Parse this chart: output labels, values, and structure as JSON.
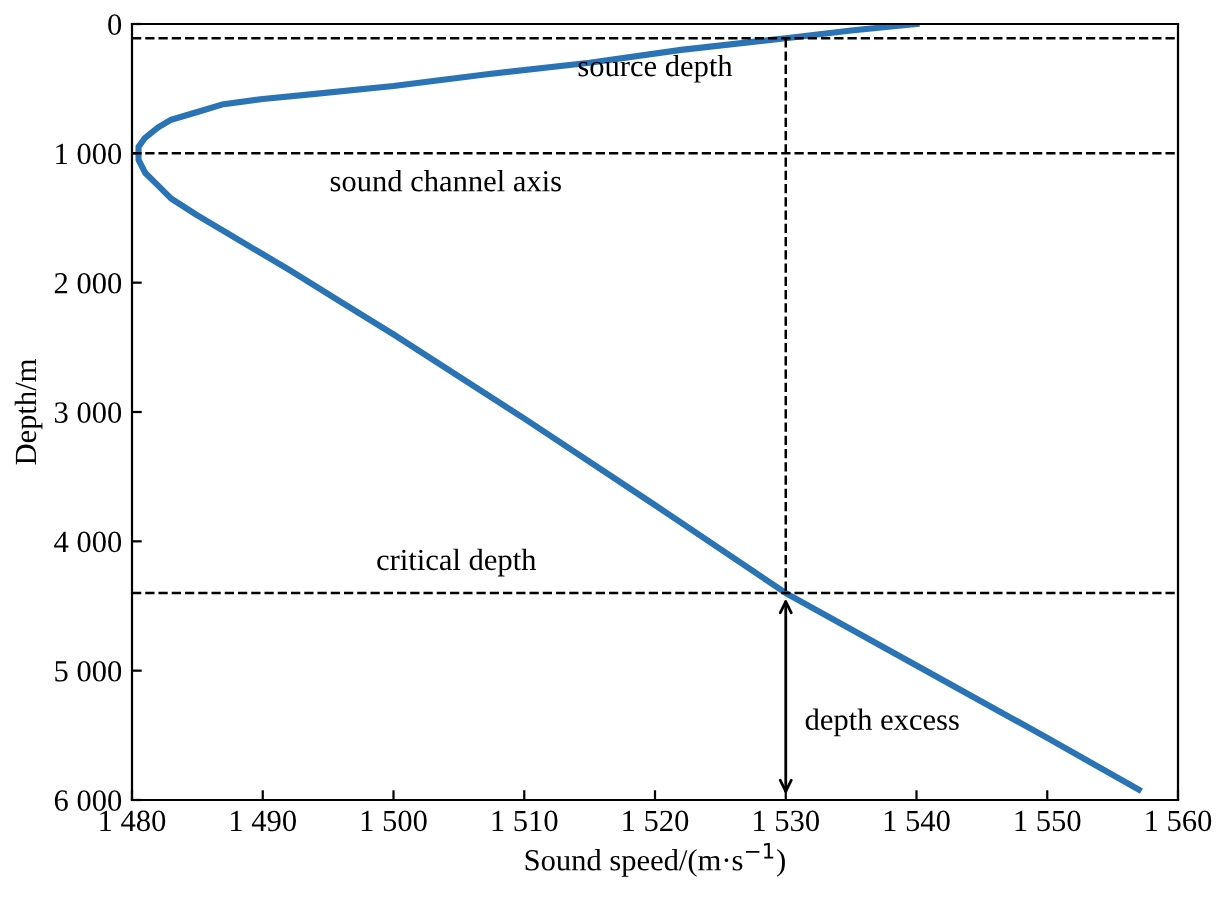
{
  "chart_data": {
    "type": "line",
    "xlabel": "Sound speed/(m·s$^{−1}$)",
    "ylabel": "Depth/m",
    "x": [
      1540,
      1535,
      1530,
      1522,
      1515,
      1507,
      1500,
      1494,
      1490,
      1487,
      1485,
      1483,
      1482,
      1481,
      1480.5,
      1480.5,
      1481,
      1482,
      1483,
      1485,
      1487,
      1490,
      1492,
      1496,
      1500,
      1510,
      1520,
      1530,
      1540,
      1550,
      1557
    ],
    "series": [
      {
        "color": "#2a73b5",
        "values": [
          0,
          50,
          110,
          200,
          300,
          390,
          480,
          540,
          580,
          620,
          680,
          740,
          800,
          880,
          950,
          1050,
          1150,
          1250,
          1350,
          1480,
          1600,
          1780,
          1900,
          2150,
          2400,
          3050,
          3720,
          4400,
          4960,
          5520,
          5920
        ]
      }
    ],
    "xlim": [
      1480,
      1560
    ],
    "ylim": [
      6000,
      0
    ],
    "xticks": [
      {
        "value": 1480,
        "label": "1 480"
      },
      {
        "value": 1490,
        "label": "1 490"
      },
      {
        "value": 1500,
        "label": "1 500"
      },
      {
        "value": 1510,
        "label": "1 510"
      },
      {
        "value": 1520,
        "label": "1 520"
      },
      {
        "value": 1530,
        "label": "1 530"
      },
      {
        "value": 1540,
        "label": "1 540"
      },
      {
        "value": 1550,
        "label": "1 550"
      },
      {
        "value": 1560,
        "label": "1 560"
      }
    ],
    "yticks": [
      0,
      {
        "value": 1000,
        "label": "1 000"
      },
      {
        "value": 2000,
        "label": "2 000"
      },
      {
        "value": 3000,
        "label": "3 000"
      },
      {
        "value": 4000,
        "label": "4 000"
      },
      {
        "value": 5000,
        "label": "5 000"
      },
      {
        "value": 6000,
        "label": "6 000"
      }
    ],
    "ref_lines": [
      {
        "axis": "y",
        "value": 110,
        "line_style": "dashed",
        "color": "#000000",
        "label": "source depth"
      },
      {
        "axis": "y",
        "value": 1000,
        "line_style": "dashed",
        "color": "#000000",
        "label": "sound channel axis"
      },
      {
        "axis": "y",
        "value": 4400,
        "line_style": "dashed",
        "color": "#000000",
        "label": "critical depth"
      },
      {
        "axis": "x",
        "value": 1530,
        "line_style": "dashed",
        "color": "#000000"
      }
    ],
    "annotations": [
      "depth excess"
    ],
    "grid": false,
    "marker": "none",
    "line_style": "solid"
  }
}
